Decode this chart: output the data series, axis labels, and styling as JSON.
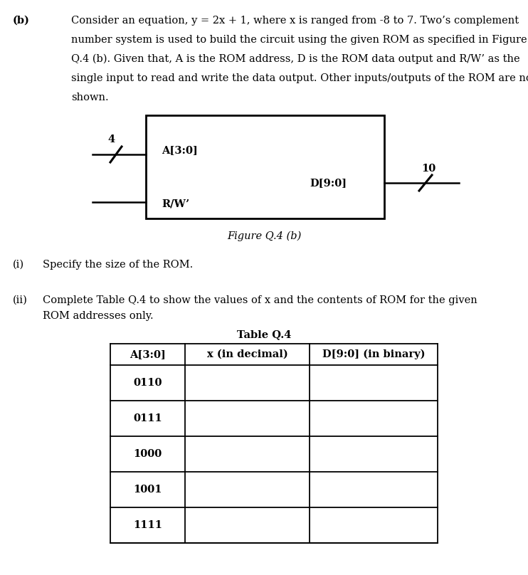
{
  "bg_color": "#ffffff",
  "label_b": "(b)",
  "para_line1": "Consider an equation, y = 2x + 1, where x is ranged from -8 to 7. Two’s complement",
  "para_line2": "number system is used to build the circuit using the given ROM as specified in Figure",
  "para_line3": "Q.4 (b). Given that, A is the ROM address, D is the ROM data output and R/W’ as the",
  "para_line4": "single input to read and write the data output. Other inputs/outputs of the ROM are not",
  "para_line5": "shown.",
  "a_label": "A[3:0]",
  "d_label": "D[9:0]",
  "rw_label": "R/W’",
  "input_4": "4",
  "output_10": "10",
  "figure_caption": "Figure Q.4 (b)",
  "q_i_label": "(i)",
  "q_i_text": "Specify the size of the ROM.",
  "q_ii_label": "(ii)",
  "q_ii_line1": "Complete Table Q.4 to show the values of x and the contents of ROM for the given",
  "q_ii_line2": "ROM addresses only.",
  "table_title": "Table Q.4",
  "table_headers": [
    "A[3:0]",
    "x (in decimal)",
    "D[9:0] (in binary)"
  ],
  "table_rows": [
    "0110",
    "0111",
    "1000",
    "1001",
    "1111"
  ],
  "font_size_body": 10.5,
  "font_size_bold": 10.5
}
